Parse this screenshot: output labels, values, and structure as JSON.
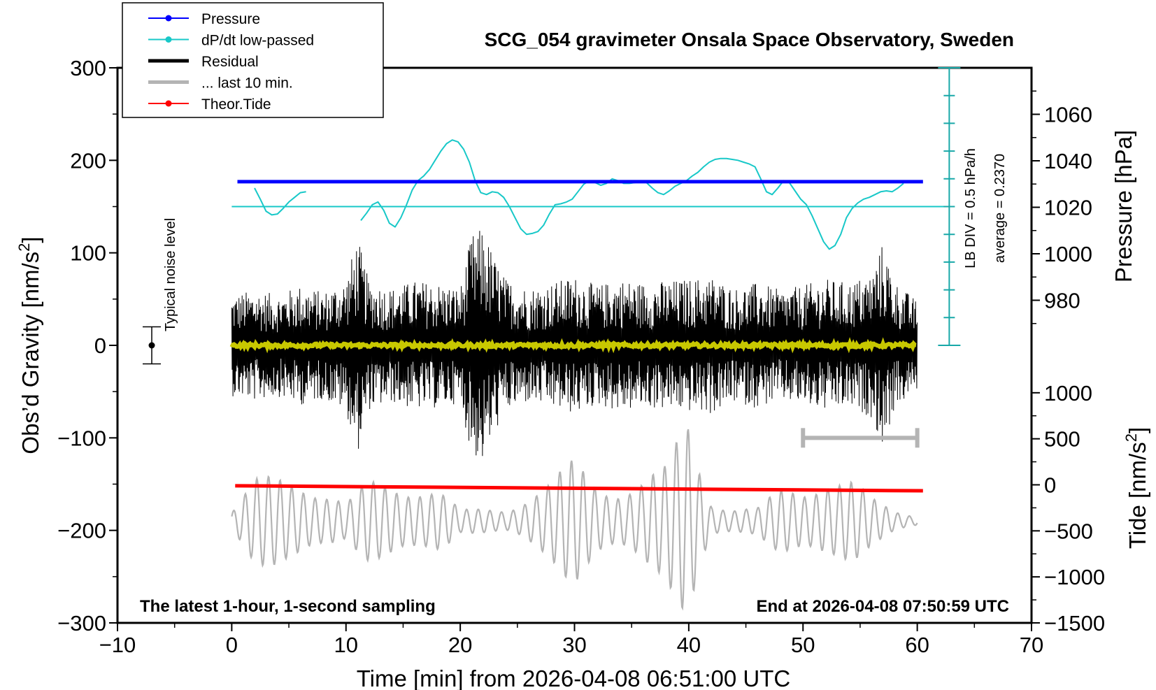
{
  "chart_data": {
    "type": "line",
    "title": "SCG_054 gravimeter Onsala Space Observatory, Sweden",
    "xlabel": "Time [min] from 2026-04-08 06:51:00 UTC",
    "xlim": [
      -10,
      70
    ],
    "x_ticks": [
      "−10",
      "0",
      "10",
      "20",
      "30",
      "40",
      "50",
      "60",
      "70"
    ],
    "left_axis": {
      "label": "Obs’d Gravity [nm/s",
      "label_sup": "2",
      "label_close": "]",
      "ylim": [
        -300,
        300
      ],
      "ticks": [
        "300",
        "200",
        "100",
        "0",
        "−100",
        "−200",
        "−300"
      ]
    },
    "pressure_axis": {
      "label": "Pressure [hPa]",
      "ticks": [
        "1060",
        "1040",
        "1020",
        "1000",
        "980"
      ],
      "tick_values": [
        1060,
        1040,
        1020,
        1000,
        980
      ],
      "range": [
        960,
        1080
      ]
    },
    "tide_axis": {
      "label": "Tide [nm/s",
      "label_sup": "2",
      "label_close": "]",
      "ticks": [
        "1000",
        "500",
        "0",
        "−500",
        "−1000",
        "−1500"
      ],
      "tick_values": [
        1000,
        500,
        0,
        -500,
        -1000,
        -1500
      ],
      "range": [
        -1500,
        1500
      ]
    },
    "legend": {
      "position": "top-left",
      "entries": [
        {
          "label": "Pressure",
          "color": "#0000ff"
        },
        {
          "label": "dP/dt low-passed",
          "color": "#18c8c8"
        },
        {
          "label": "Residual",
          "color": "#000000"
        },
        {
          "label": "... last 10 min.",
          "color": "#b4b4b4"
        },
        {
          "label": "Theor.Tide",
          "color": "#ff0000"
        }
      ]
    },
    "dpdt_scale": {
      "label1": "LB DIV = 0.5 hPa/h",
      "label2": "average = 0.2370",
      "divisions": 10,
      "color": "#18a8a8"
    },
    "noise_label": "Typical noise level",
    "noise_level": {
      "x": -7,
      "center": 0,
      "half_range": 20
    },
    "footer_left": "The latest 1-hour, 1-second sampling",
    "footer_right": "End at 2026-04-08 07:50:59 UTC",
    "series": {
      "pressure": {
        "name": "Pressure",
        "units": "hPa",
        "x": [
          0.5,
          20,
          40,
          60.5
        ],
        "values": [
          1031,
          1031,
          1031,
          1031
        ]
      },
      "dpdt_reference": {
        "name": "dP/dt zero line",
        "y_nm": 150,
        "x_range": [
          0,
          63
        ]
      },
      "dpdt": {
        "name": "dP/dt low-passed",
        "units": "nm/s2 plot scale",
        "segments": [
          {
            "x": [
              2,
              2.5,
              3,
              3.5,
              4,
              4.5,
              5,
              5.5,
              6,
              6.5
            ],
            "values": [
              170,
              158,
              145,
              141,
              142,
              148,
              155,
              160,
              165,
              166
            ]
          },
          {
            "x": [
              11.3,
              11.8,
              12.3,
              12.8,
              13.3,
              13.8,
              14.3,
              14.8,
              15.3,
              15.8,
              16.3,
              16.8,
              17.3,
              17.8,
              18.3,
              18.8,
              19.3,
              19.8,
              20.3,
              20.8,
              21.3,
              21.8,
              22.3,
              22.8,
              23.3,
              23.8,
              24.3,
              24.8,
              25.3,
              25.8,
              26.3,
              26.8,
              27.3,
              27.8,
              28.3,
              28.8,
              29.3,
              29.8,
              30.3,
              30.8,
              31.3,
              31.8,
              32.3,
              32.8,
              33.3,
              33.8,
              34.3,
              34.8,
              35.3,
              35.8,
              36.3,
              36.8,
              37.3,
              37.8,
              38.3,
              38.8,
              39.3,
              39.8,
              40.3,
              40.8,
              41.3,
              41.8,
              42.3,
              42.8,
              43.3,
              43.8,
              44.3,
              44.8,
              45.3,
              45.8,
              46.3,
              46.8,
              47.3,
              47.8,
              48.3,
              48.8,
              49.3,
              49.8,
              50.3,
              50.8,
              51.3,
              51.8,
              52.3,
              52.8,
              53.3,
              53.8,
              54.3,
              54.8,
              55.3,
              55.8,
              56.3,
              56.8,
              57.3,
              57.8,
              58.3,
              58.8
            ],
            "values": [
              135,
              143,
              152,
              155,
              146,
              132,
              128,
              138,
              152,
              168,
              178,
              183,
              190,
              200,
              210,
              218,
              222,
              220,
              212,
              198,
              178,
              165,
              163,
              166,
              165,
              160,
              150,
              138,
              126,
              120,
              121,
              123,
              130,
              142,
              152,
              153,
              155,
              158,
              166,
              174,
              178,
              176,
              173,
              175,
              180,
              178,
              175,
              175,
              176,
              178,
              176,
              170,
              165,
              163,
              167,
              172,
              175,
              178,
              183,
              187,
              193,
              198,
              201,
              202,
              202,
              201,
              200,
              198,
              196,
              193,
              180,
              166,
              163,
              170,
              178,
              176,
              167,
              158,
              152,
              140,
              126,
              112,
              104,
              108,
              120,
              138,
              148,
              154,
              158,
              160,
              163,
              166,
              167,
              166,
              170,
              175
            ]
          }
        ]
      },
      "residual": {
        "name": "Residual",
        "units": "nm/s2",
        "x_range": [
          0,
          60
        ],
        "envelope_x": [
          0,
          2,
          4,
          6,
          8,
          10,
          11,
          12,
          14,
          16,
          18,
          20,
          21,
          22,
          23,
          24,
          26,
          28,
          30,
          32,
          34,
          36,
          38,
          40,
          42,
          44,
          46,
          48,
          50,
          52,
          54,
          56,
          57,
          58,
          60
        ],
        "envelope_amplitude": [
          55,
          60,
          55,
          65,
          58,
          72,
          118,
          70,
          62,
          70,
          68,
          62,
          120,
          128,
          95,
          72,
          62,
          68,
          75,
          65,
          72,
          68,
          70,
          72,
          75,
          62,
          68,
          60,
          65,
          72,
          68,
          78,
          112,
          70,
          48
        ],
        "peak_max": 128,
        "peak_min": -137
      },
      "residual_smoothed": {
        "name": "Residual (smoothed)",
        "color": "#c8c800",
        "level": 0
      },
      "last_10_min": {
        "name": "... last 10 min.",
        "units": "nm/s2 plot scale",
        "x_range": [
          50,
          60
        ],
        "level": -100
      },
      "tide_oscillation": {
        "name": "... last 10 min.",
        "units": "nm/s2 plot scale",
        "x_range": [
          0,
          60
        ],
        "baseline": -190,
        "envelope_x": [
          0,
          2,
          4,
          6,
          8,
          10,
          12,
          14,
          16,
          18,
          20,
          22,
          24,
          26,
          28,
          30,
          32,
          34,
          36,
          38,
          40,
          42,
          44,
          46,
          48,
          50,
          52,
          54,
          56,
          58,
          60
        ],
        "envelope_amplitude": [
          12,
          45,
          55,
          62,
          40,
          20,
          45,
          50,
          52,
          40,
          12,
          15,
          18,
          35,
          45,
          70,
          50,
          48,
          52,
          60,
          122,
          28,
          18,
          15,
          35,
          40,
          68,
          55,
          25,
          12,
          8
        ]
      },
      "theor_tide": {
        "name": "Theor.Tide",
        "units": "nm/s2",
        "x": [
          0.3,
          60.5
        ],
        "values": [
          -10,
          -65
        ]
      }
    }
  }
}
